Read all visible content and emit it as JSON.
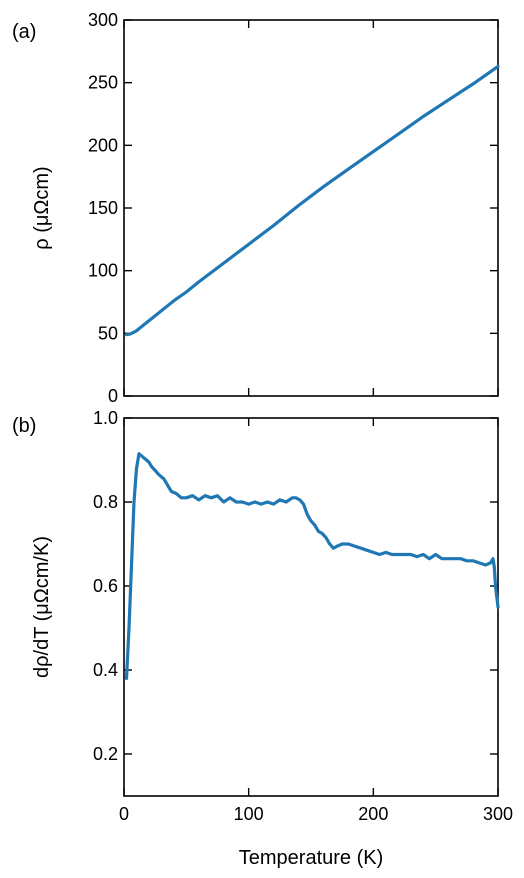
{
  "chart_data": [
    {
      "type": "line",
      "panel_label": "(a)",
      "ylabel": "ρ (μΩcm)",
      "xlabel": "",
      "xlim": [
        0,
        300
      ],
      "ylim": [
        0,
        300
      ],
      "xticks": [
        0,
        100,
        200,
        300
      ],
      "yticks": [
        0,
        50,
        100,
        150,
        200,
        250,
        300
      ],
      "ytick_labels": [
        "0",
        "50",
        "100",
        "150",
        "200",
        "250",
        "300"
      ],
      "xtick_labels": [],
      "color": "#1f77b4",
      "grid": false,
      "series": [
        {
          "x": [
            2,
            5,
            10,
            15,
            20,
            30,
            40,
            50,
            60,
            80,
            100,
            120,
            140,
            160,
            180,
            200,
            220,
            240,
            260,
            280,
            300
          ],
          "y": [
            49,
            49.5,
            52,
            56,
            60,
            68,
            76,
            83,
            91,
            106,
            121,
            136,
            152,
            167,
            181,
            195,
            209,
            223,
            236,
            249,
            263
          ]
        }
      ]
    },
    {
      "type": "line",
      "panel_label": "(b)",
      "ylabel": "dρ/dT (μΩcm/K)",
      "xlabel": "Temperature (K)",
      "xlim": [
        0,
        300
      ],
      "ylim": [
        0.1,
        1.0
      ],
      "xticks": [
        0,
        100,
        200,
        300
      ],
      "xtick_labels": [
        "0",
        "100",
        "200",
        "300"
      ],
      "yticks": [
        0.2,
        0.4,
        0.6,
        0.8,
        1.0
      ],
      "ytick_labels": [
        "0.2",
        "0.4",
        "0.6",
        "0.8",
        "1.0"
      ],
      "color": "#1f77b4",
      "grid": false,
      "series": [
        {
          "x": [
            2,
            4,
            6,
            8,
            10,
            12,
            14,
            16,
            18,
            20,
            22,
            25,
            28,
            30,
            32,
            35,
            38,
            42,
            46,
            50,
            55,
            60,
            65,
            70,
            75,
            80,
            85,
            90,
            95,
            100,
            105,
            110,
            115,
            120,
            125,
            130,
            135,
            138,
            141,
            144,
            147,
            150,
            153,
            156,
            159,
            162,
            165,
            168,
            171,
            175,
            180,
            185,
            190,
            195,
            200,
            205,
            210,
            215,
            220,
            225,
            230,
            235,
            240,
            245,
            250,
            255,
            260,
            265,
            270,
            275,
            280,
            285,
            290,
            294,
            296,
            297,
            298,
            300
          ],
          "y": [
            0.38,
            0.5,
            0.65,
            0.8,
            0.88,
            0.915,
            0.91,
            0.905,
            0.9,
            0.895,
            0.885,
            0.875,
            0.865,
            0.86,
            0.855,
            0.84,
            0.825,
            0.82,
            0.81,
            0.81,
            0.815,
            0.805,
            0.815,
            0.81,
            0.815,
            0.8,
            0.81,
            0.8,
            0.8,
            0.795,
            0.8,
            0.795,
            0.8,
            0.795,
            0.805,
            0.8,
            0.81,
            0.81,
            0.805,
            0.795,
            0.77,
            0.755,
            0.745,
            0.73,
            0.725,
            0.715,
            0.7,
            0.69,
            0.695,
            0.7,
            0.7,
            0.695,
            0.69,
            0.685,
            0.68,
            0.675,
            0.68,
            0.675,
            0.675,
            0.675,
            0.675,
            0.67,
            0.675,
            0.665,
            0.675,
            0.665,
            0.665,
            0.665,
            0.665,
            0.66,
            0.66,
            0.655,
            0.65,
            0.655,
            0.665,
            0.645,
            0.6,
            0.55
          ]
        }
      ]
    }
  ]
}
